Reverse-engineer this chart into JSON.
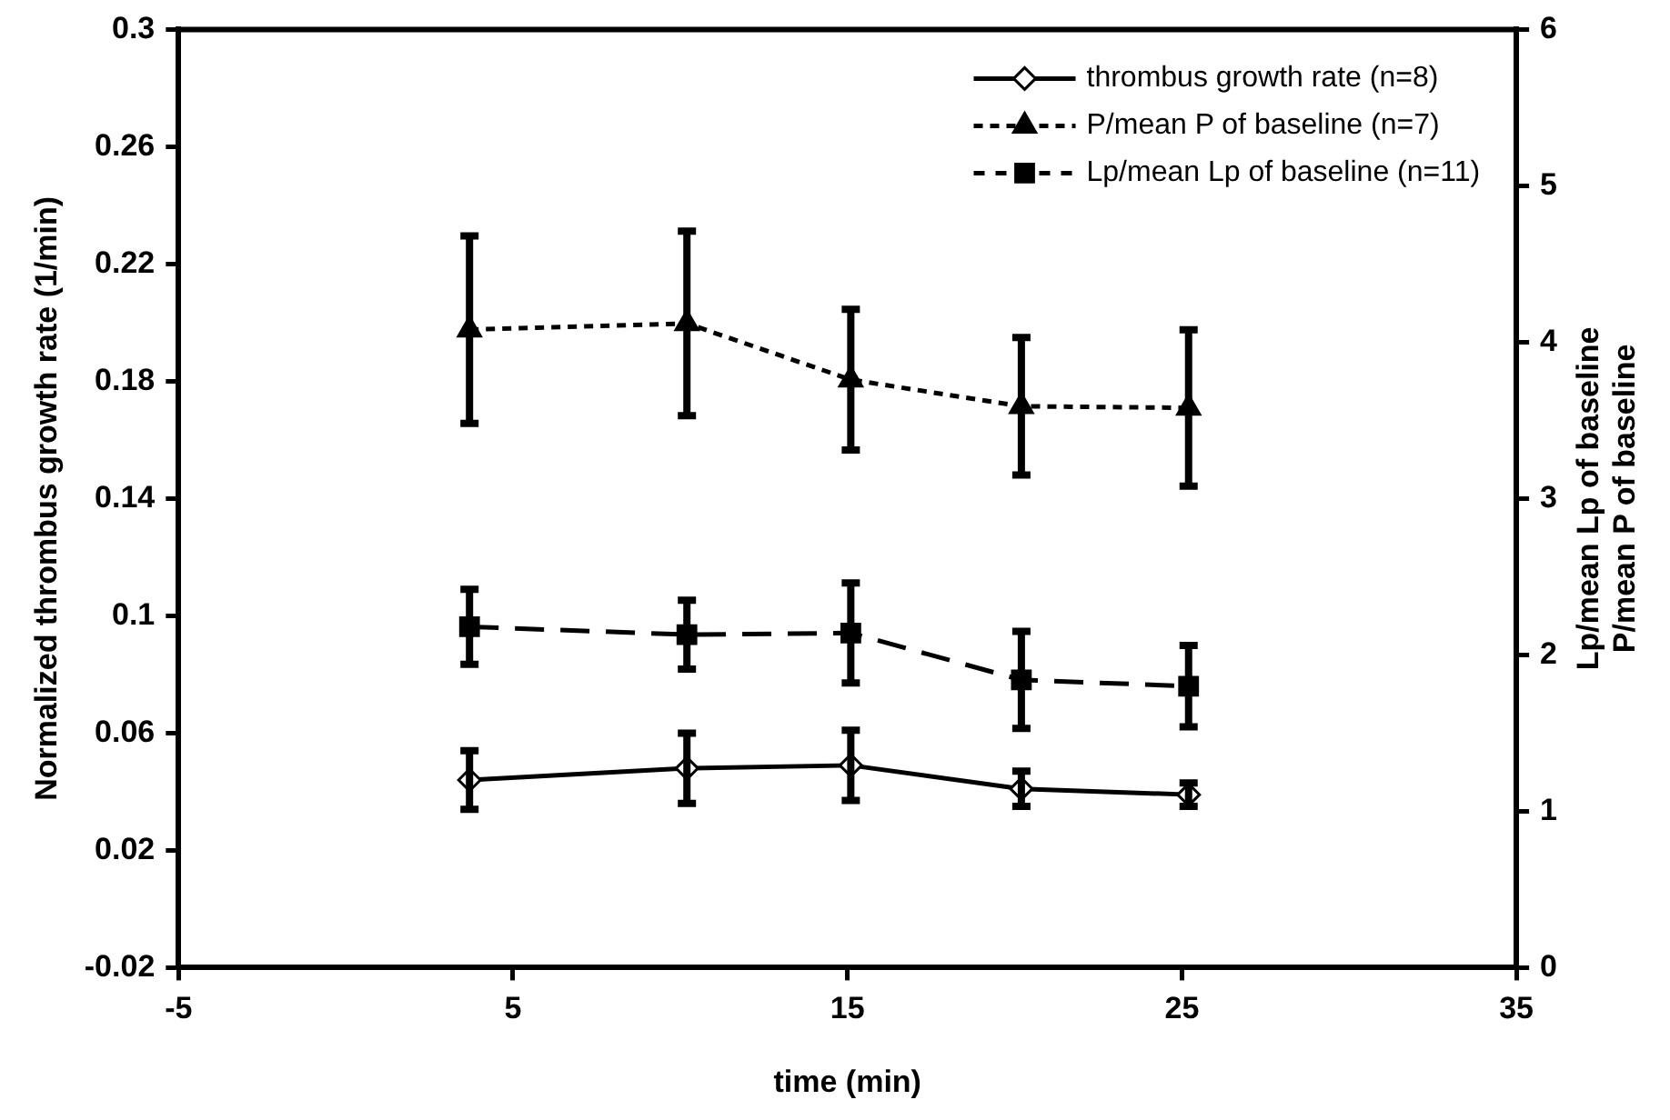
{
  "chart_data": {
    "type": "line",
    "xlabel": "time (min)",
    "ylabel": "Normalized thrombus growth rate (1/min)",
    "y2label": [
      "Lp/mean Lp of baseline",
      "P/mean P of baseline"
    ],
    "x": [
      3.7,
      10.2,
      15.1,
      20.2,
      25.2
    ],
    "xlim": [
      -5,
      35
    ],
    "xticks": [
      -5,
      5,
      15,
      25,
      35
    ],
    "ylim": [
      -0.02,
      0.3
    ],
    "yticks": [
      -0.02,
      0.02,
      0.06,
      0.1,
      0.14,
      0.18,
      0.22,
      0.26,
      0.3
    ],
    "y2lim": [
      0,
      6
    ],
    "y2ticks": [
      0,
      1,
      2,
      3,
      4,
      5,
      6
    ],
    "grid": false,
    "legend": "top right",
    "series": [
      {
        "name": "thrombus growth rate (n=8)",
        "color": "#000000",
        "marker": "diamond",
        "line_style": "solid",
        "values": [
          0.044,
          0.048,
          0.049,
          0.041,
          0.039
        ],
        "errors": [
          0.01,
          0.012,
          0.012,
          0.006,
          0.004
        ]
      },
      {
        "name": "P/mean P of baseline (n=7)",
        "color": "#000000",
        "marker": "triangle",
        "line_style": "dotted",
        "axis": "y2",
        "values": [
          4.08,
          4.12,
          3.76,
          3.59,
          3.58
        ],
        "errors": [
          0.6,
          0.59,
          0.45,
          0.44,
          0.5
        ]
      },
      {
        "name": "Lp/mean Lp of baseline (n=11)",
        "color": "#000000",
        "marker": "square",
        "line_style": "dashed",
        "axis": "y2",
        "values": [
          2.18,
          2.13,
          2.14,
          1.84,
          1.8
        ],
        "errors": [
          0.24,
          0.22,
          0.32,
          0.31,
          0.26
        ]
      }
    ]
  }
}
